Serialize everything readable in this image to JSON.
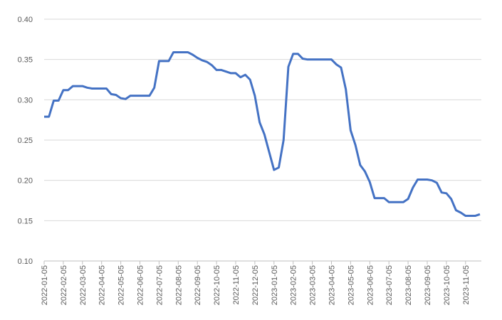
{
  "chart_data": {
    "type": "line",
    "categories": [
      "2022-01-05",
      null,
      null,
      null,
      "2022-02-05",
      null,
      null,
      null,
      "2022-03-05",
      null,
      null,
      null,
      "2022-04-05",
      null,
      null,
      null,
      "2022-05-05",
      null,
      null,
      null,
      "2022-06-05",
      null,
      null,
      null,
      "2022-07-05",
      null,
      null,
      null,
      "2022-08-05",
      null,
      null,
      null,
      "2022-09-05",
      null,
      null,
      null,
      "2022-10-05",
      null,
      null,
      null,
      "2022-11-05",
      null,
      null,
      null,
      "2022-12-05",
      null,
      null,
      null,
      "2023-01-05",
      null,
      null,
      null,
      "2023-02-05",
      null,
      null,
      null,
      "2023-03-05",
      null,
      null,
      null,
      "2023-04-05",
      null,
      null,
      null,
      "2023-05-05",
      null,
      null,
      null,
      "2023-06-05",
      null,
      null,
      null,
      "2023-07-05",
      null,
      null,
      null,
      "2023-08-05",
      null,
      null,
      null,
      "2023-09-05",
      null,
      null,
      null,
      "2023-10-05",
      null,
      null,
      null,
      "2023-11-05",
      null,
      null,
      null
    ],
    "series": [
      {
        "color": "#4472c4",
        "values": [
          0.279,
          0.279,
          0.299,
          0.299,
          0.312,
          0.312,
          0.317,
          0.317,
          0.317,
          0.315,
          0.314,
          0.314,
          0.314,
          0.314,
          0.307,
          0.306,
          0.302,
          0.301,
          0.305,
          0.305,
          0.305,
          0.305,
          0.305,
          0.315,
          0.348,
          0.348,
          0.348,
          0.359,
          0.359,
          0.359,
          0.359,
          0.356,
          0.352,
          0.349,
          0.347,
          0.343,
          0.337,
          0.337,
          0.335,
          0.333,
          0.333,
          0.328,
          0.331,
          0.325,
          0.305,
          0.272,
          0.257,
          0.235,
          0.213,
          0.216,
          0.25,
          0.341,
          0.357,
          0.357,
          0.351,
          0.35,
          0.35,
          0.35,
          0.35,
          0.35,
          0.35,
          0.344,
          0.34,
          0.313,
          0.262,
          0.244,
          0.219,
          0.211,
          0.198,
          0.178,
          0.178,
          0.178,
          0.173,
          0.173,
          0.173,
          0.173,
          0.177,
          0.191,
          0.201,
          0.201,
          0.201,
          0.2,
          0.197,
          0.185,
          0.184,
          0.177,
          0.163,
          0.16,
          0.156,
          0.156,
          0.156,
          0.158
        ]
      }
    ],
    "ylim": [
      0.1,
      0.4
    ],
    "yticks": [
      {
        "value": 0.1,
        "label": "0.10"
      },
      0.15,
      {
        "value": 0.2,
        "label": "0.20"
      },
      0.25,
      {
        "value": 0.3,
        "label": "0.30"
      },
      0.35,
      {
        "value": 0.4,
        "label": "0.40"
      }
    ],
    "grid": true
  }
}
